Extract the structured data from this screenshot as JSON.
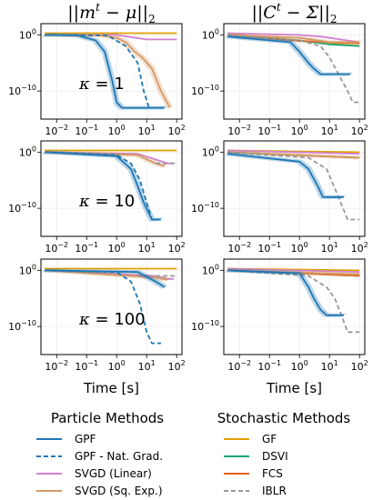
{
  "figure": {
    "column_titles": [
      {
        "lhs": "||",
        "var": "m",
        "sup": "t",
        "mid": " − ",
        "sym": "μ",
        "rhs": "||",
        "sub": "2"
      },
      {
        "lhs": "||",
        "var": "C",
        "sup": "t",
        "mid": " − ",
        "sym": "Σ",
        "rhs": "||",
        "sub": "2"
      }
    ],
    "row_labels": [
      {
        "sym": "κ",
        "value": "= 1"
      },
      {
        "sym": "κ",
        "value": "= 10"
      },
      {
        "sym": "κ",
        "value": "= 100"
      }
    ],
    "xlabel": "Time [s]",
    "legend": {
      "particle_title": "Particle Methods",
      "stochastic_title": "Stochastic Methods",
      "particle_entries": [
        {
          "label": "GPF",
          "color": "#1f77b4",
          "dash": "solid"
        },
        {
          "label": "GPF - Nat. Grad.",
          "color": "#1f77b4",
          "dash": "dashed"
        },
        {
          "label": "SVGD (Linear)",
          "color": "#d37fd1",
          "dash": "solid"
        },
        {
          "label": "SVGD (Sq. Exp.)",
          "color": "#d49a66",
          "dash": "solid"
        }
      ],
      "stochastic_entries": [
        {
          "label": "GF",
          "color": "#e0a000",
          "dash": "solid"
        },
        {
          "label": "DSVI",
          "color": "#17a673",
          "dash": "solid"
        },
        {
          "label": "FCS",
          "color": "#e45f1f",
          "dash": "solid"
        },
        {
          "label": "IBLR",
          "color": "#999999",
          "dash": "dashed"
        }
      ]
    }
  },
  "chart_data": {
    "type": "line",
    "x_scale": "log",
    "y_scale": "log",
    "xlim": [
      0.003,
      150
    ],
    "ylim": [
      1e-15,
      100.0
    ],
    "xticks": [
      {
        "value": 0.01,
        "base": "10",
        "exp": "−2"
      },
      {
        "value": 0.1,
        "base": "10",
        "exp": "−1"
      },
      {
        "value": 1,
        "base": "10",
        "exp": "0"
      },
      {
        "value": 10,
        "base": "10",
        "exp": "1"
      },
      {
        "value": 100,
        "base": "10",
        "exp": "2"
      }
    ],
    "yticks": [
      {
        "value": 1,
        "base": "10",
        "exp": "0"
      },
      {
        "value": 1e-10,
        "base": "10",
        "exp": "−10"
      }
    ],
    "series_styles": {
      "GPF": {
        "color": "#1f77b4",
        "dash": "solid",
        "band": true
      },
      "GPF - Nat. Grad.": {
        "color": "#1f77b4",
        "dash": "dashed"
      },
      "SVGD (Linear)": {
        "color": "#d37fd1",
        "dash": "solid"
      },
      "SVGD (Sq. Exp.)": {
        "color": "#d49a66",
        "dash": "solid",
        "band": true
      },
      "GF": {
        "color": "#e0a000",
        "dash": "solid"
      },
      "DSVI": {
        "color": "#17a673",
        "dash": "solid"
      },
      "FCS": {
        "color": "#e45f1f",
        "dash": "solid"
      },
      "IBLR": {
        "color": "#999999",
        "dash": "dashed"
      }
    },
    "panels": [
      {
        "row": 0,
        "col": 0,
        "series": [
          {
            "name": "GF",
            "points": [
              [
                0.004,
                2
              ],
              [
                100,
                2
              ]
            ]
          },
          {
            "name": "SVGD (Linear)",
            "points": [
              [
                0.004,
                1
              ],
              [
                1,
                1
              ],
              [
                3,
                0.4
              ],
              [
                10,
                0.15
              ],
              [
                40,
                0.15
              ],
              [
                100,
                0.15
              ]
            ]
          },
          {
            "name": "SVGD (Sq. Exp.)",
            "points": [
              [
                0.004,
                1
              ],
              [
                0.3,
                0.8
              ],
              [
                1,
                0.3
              ],
              [
                2,
                0.05
              ],
              [
                4,
                0.001
              ],
              [
                7,
                0.0001
              ],
              [
                15,
                1e-06
              ],
              [
                30,
                1e-10
              ],
              [
                60,
                1e-13
              ]
            ]
          },
          {
            "name": "GPF - Nat. Grad.",
            "points": [
              [
                0.004,
                1
              ],
              [
                0.5,
                0.8
              ],
              [
                2,
                0.01
              ],
              [
                5,
                1e-05
              ],
              [
                8,
                1e-10
              ],
              [
                12,
                1e-13
              ],
              [
                40,
                1e-13
              ]
            ]
          },
          {
            "name": "GPF",
            "points": [
              [
                0.004,
                1
              ],
              [
                0.05,
                0.8
              ],
              [
                0.2,
                0.1
              ],
              [
                0.4,
                0.001
              ],
              [
                0.7,
                1e-08
              ],
              [
                1,
                1e-12
              ],
              [
                1.5,
                1e-13
              ],
              [
                40,
                1e-13
              ]
            ]
          }
        ]
      },
      {
        "row": 0,
        "col": 1,
        "series": [
          {
            "name": "GF",
            "points": [
              [
                0.004,
                1.5
              ],
              [
                100,
                0.01
              ]
            ]
          },
          {
            "name": "DSVI",
            "points": [
              [
                0.004,
                1
              ],
              [
                1,
                0.1
              ],
              [
                10,
                0.02
              ],
              [
                100,
                0.01
              ]
            ]
          },
          {
            "name": "FCS",
            "points": [
              [
                0.004,
                1
              ],
              [
                1,
                0.08
              ],
              [
                100,
                0.03
              ]
            ]
          },
          {
            "name": "SVGD (Linear)",
            "points": [
              [
                0.004,
                2
              ],
              [
                1,
                1
              ],
              [
                5,
                0.5
              ],
              [
                40,
                0.1
              ],
              [
                100,
                0.05
              ]
            ]
          },
          {
            "name": "SVGD (Sq. Exp.)",
            "points": [
              [
                0.004,
                1
              ],
              [
                1,
                0.3
              ],
              [
                10,
                0.05
              ],
              [
                100,
                0.05
              ]
            ]
          },
          {
            "name": "IBLR",
            "points": [
              [
                0.004,
                1
              ],
              [
                1,
                0.1
              ],
              [
                5,
                0.01
              ],
              [
                10,
                0.0001
              ],
              [
                20,
                1e-07
              ],
              [
                40,
                1e-10
              ],
              [
                60,
                1e-12
              ],
              [
                100,
                1e-12
              ]
            ]
          },
          {
            "name": "GPF",
            "points": [
              [
                0.004,
                0.5
              ],
              [
                0.5,
                0.05
              ],
              [
                1,
                0.001
              ],
              [
                2,
                1e-05
              ],
              [
                3,
                1e-06
              ],
              [
                5,
                1e-07
              ],
              [
                50,
                1e-07
              ]
            ]
          }
        ]
      },
      {
        "row": 1,
        "col": 0,
        "series": [
          {
            "name": "GF",
            "points": [
              [
                0.004,
                2
              ],
              [
                100,
                2
              ]
            ]
          },
          {
            "name": "SVGD (Linear)",
            "points": [
              [
                0.004,
                1
              ],
              [
                5,
                0.5
              ],
              [
                20,
                0.05
              ],
              [
                50,
                0.01
              ],
              [
                80,
                0.01
              ]
            ]
          },
          {
            "name": "SVGD (Sq. Exp.)",
            "points": [
              [
                0.004,
                1
              ],
              [
                5,
                0.3
              ],
              [
                20,
                0.01
              ],
              [
                40,
                0.003
              ]
            ]
          },
          {
            "name": "IBLR",
            "points": [
              [
                20,
                0.01
              ],
              [
                60,
                0.01
              ],
              [
                100,
                0.01
              ]
            ]
          },
          {
            "name": "GPF - Nat. Grad.",
            "points": [
              [
                0.004,
                1
              ],
              [
                1,
                0.3
              ],
              [
                3,
                0.01
              ],
              [
                6,
                1e-05
              ],
              [
                10,
                1e-09
              ],
              [
                15,
                1e-12
              ],
              [
                30,
                1e-12
              ]
            ]
          },
          {
            "name": "GPF",
            "points": [
              [
                0.004,
                1
              ],
              [
                1,
                0.2
              ],
              [
                3,
                0.001
              ],
              [
                5,
                1e-06
              ],
              [
                8,
                1e-09
              ],
              [
                15,
                1e-12
              ],
              [
                30,
                1e-12
              ]
            ]
          }
        ]
      },
      {
        "row": 1,
        "col": 1,
        "series": [
          {
            "name": "GF",
            "points": [
              [
                0.004,
                2
              ],
              [
                100,
                1
              ]
            ]
          },
          {
            "name": "DSVI",
            "points": [
              [
                0.004,
                1
              ],
              [
                100,
                0.1
              ]
            ]
          },
          {
            "name": "FCS",
            "points": [
              [
                0.004,
                1
              ],
              [
                100,
                0.1
              ]
            ]
          },
          {
            "name": "SVGD (Linear)",
            "points": [
              [
                0.004,
                2
              ],
              [
                100,
                0.5
              ]
            ]
          },
          {
            "name": "SVGD (Sq. Exp.)",
            "points": [
              [
                0.004,
                1
              ],
              [
                100,
                0.1
              ]
            ]
          },
          {
            "name": "IBLR",
            "points": [
              [
                0.004,
                1
              ],
              [
                2,
                0.1
              ],
              [
                8,
                0.001
              ],
              [
                20,
                1e-08
              ],
              [
                40,
                1e-12
              ],
              [
                100,
                1e-12
              ]
            ]
          },
          {
            "name": "GPF",
            "points": [
              [
                0.004,
                0.5
              ],
              [
                1,
                0.02
              ],
              [
                2,
                0.001
              ],
              [
                4,
                1e-06
              ],
              [
                6,
                1e-08
              ],
              [
                30,
                1e-08
              ]
            ]
          }
        ]
      },
      {
        "row": 2,
        "col": 0,
        "series": [
          {
            "name": "GF",
            "points": [
              [
                0.004,
                2
              ],
              [
                100,
                2
              ]
            ]
          },
          {
            "name": "SVGD (Linear)",
            "points": [
              [
                0.004,
                1
              ],
              [
                20,
                0.1
              ],
              [
                50,
                0.03
              ],
              [
                80,
                0.03
              ]
            ]
          },
          {
            "name": "SVGD (Sq. Exp.)",
            "points": [
              [
                0.004,
                1
              ],
              [
                20,
                0.05
              ],
              [
                50,
                0.02
              ]
            ]
          },
          {
            "name": "IBLR",
            "points": [
              [
                20,
                0.1
              ],
              [
                60,
                0.1
              ],
              [
                100,
                0.1
              ]
            ]
          },
          {
            "name": "GPF - Nat. Grad.",
            "points": [
              [
                0.004,
                1
              ],
              [
                1,
                0.5
              ],
              [
                3,
                0.01
              ],
              [
                6,
                1e-06
              ],
              [
                10,
                1e-11
              ],
              [
                15,
                1e-13
              ],
              [
                30,
                1e-13
              ]
            ]
          },
          {
            "name": "GPF",
            "points": [
              [
                0.004,
                1
              ],
              [
                5,
                0.5
              ],
              [
                20,
                0.01
              ],
              [
                40,
                0.001
              ]
            ]
          }
        ]
      },
      {
        "row": 2,
        "col": 1,
        "series": [
          {
            "name": "GF",
            "points": [
              [
                0.004,
                2
              ],
              [
                100,
                1
              ]
            ]
          },
          {
            "name": "DSVI",
            "points": [
              [
                0.004,
                1
              ],
              [
                100,
                0.1
              ]
            ]
          },
          {
            "name": "FCS",
            "points": [
              [
                0.004,
                1
              ],
              [
                100,
                0.1
              ]
            ]
          },
          {
            "name": "SVGD (Linear)",
            "points": [
              [
                0.004,
                2
              ],
              [
                100,
                0.5
              ]
            ]
          },
          {
            "name": "SVGD (Sq. Exp.)",
            "points": [
              [
                0.004,
                1
              ],
              [
                100,
                0.2
              ]
            ]
          },
          {
            "name": "IBLR",
            "points": [
              [
                0.004,
                1
              ],
              [
                2,
                0.1
              ],
              [
                8,
                0.001
              ],
              [
                15,
                1e-05
              ],
              [
                25,
                1e-08
              ],
              [
                40,
                1e-11
              ],
              [
                100,
                1e-11
              ]
            ]
          },
          {
            "name": "GPF",
            "points": [
              [
                0.004,
                1
              ],
              [
                1,
                0.3
              ],
              [
                2,
                0.001
              ],
              [
                3,
                1e-05
              ],
              [
                5,
                1e-07
              ],
              [
                8,
                1e-08
              ],
              [
                30,
                1e-08
              ]
            ]
          }
        ]
      }
    ]
  }
}
